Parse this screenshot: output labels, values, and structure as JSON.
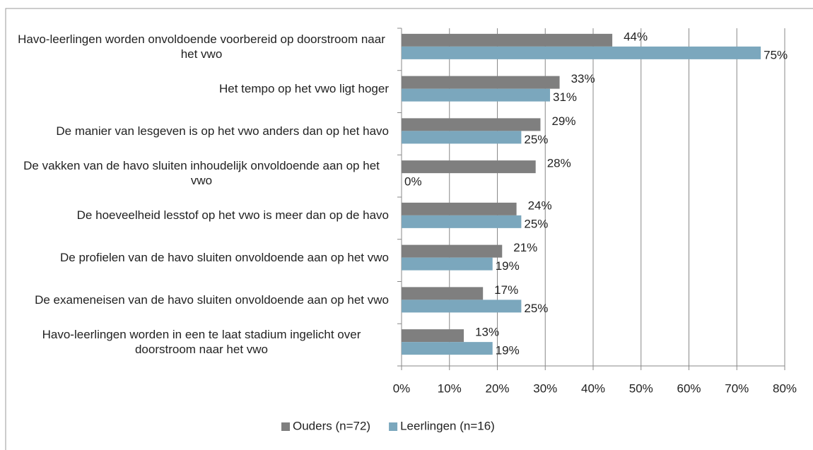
{
  "chart_data": {
    "type": "bar",
    "orientation": "horizontal",
    "categories": [
      "Havo-leerlingen worden onvoldoende voorbereid op doorstroom naar het vwo",
      "Het tempo op het vwo ligt hoger",
      "De manier van lesgeven is op het vwo anders dan op het havo",
      "De vakken van de havo sluiten inhoudelijk onvoldoende aan op het vwo",
      "De hoeveelheid lesstof op het vwo is meer dan op de havo",
      "De profielen van de havo sluiten onvoldoende aan op het vwo",
      "De exameneisen van de havo sluiten onvoldoende aan op het vwo",
      "Havo-leerlingen worden in een te laat stadium ingelicht over doorstroom naar het vwo"
    ],
    "series": [
      {
        "name": "Ouders (n=72)",
        "color": "#7f7f7f",
        "values": [
          44,
          33,
          29,
          28,
          24,
          21,
          17,
          13
        ],
        "value_labels": [
          "44%",
          "33%",
          "29%",
          "28%",
          "24%",
          "21%",
          "17%",
          "13%"
        ]
      },
      {
        "name": "Leerlingen (n=16)",
        "color": "#7ba7bd",
        "values": [
          75,
          31,
          25,
          0,
          25,
          19,
          25,
          19
        ],
        "value_labels": [
          "75%",
          "31%",
          "25%",
          "0%",
          "25%",
          "19%",
          "25%",
          "19%"
        ]
      }
    ],
    "xlim": [
      0,
      80
    ],
    "xticks": [
      {
        "value": 0,
        "label": "0%"
      },
      {
        "value": 10,
        "label": "10%"
      },
      {
        "value": 20,
        "label": "20%"
      },
      {
        "value": 30,
        "label": "30%"
      },
      {
        "value": 40,
        "label": "40%"
      },
      {
        "value": 50,
        "label": "50%"
      },
      {
        "value": 60,
        "label": "60%"
      },
      {
        "value": 70,
        "label": "70%"
      },
      {
        "value": 80,
        "label": "80%"
      }
    ],
    "grid": true,
    "legend": "bottom"
  }
}
